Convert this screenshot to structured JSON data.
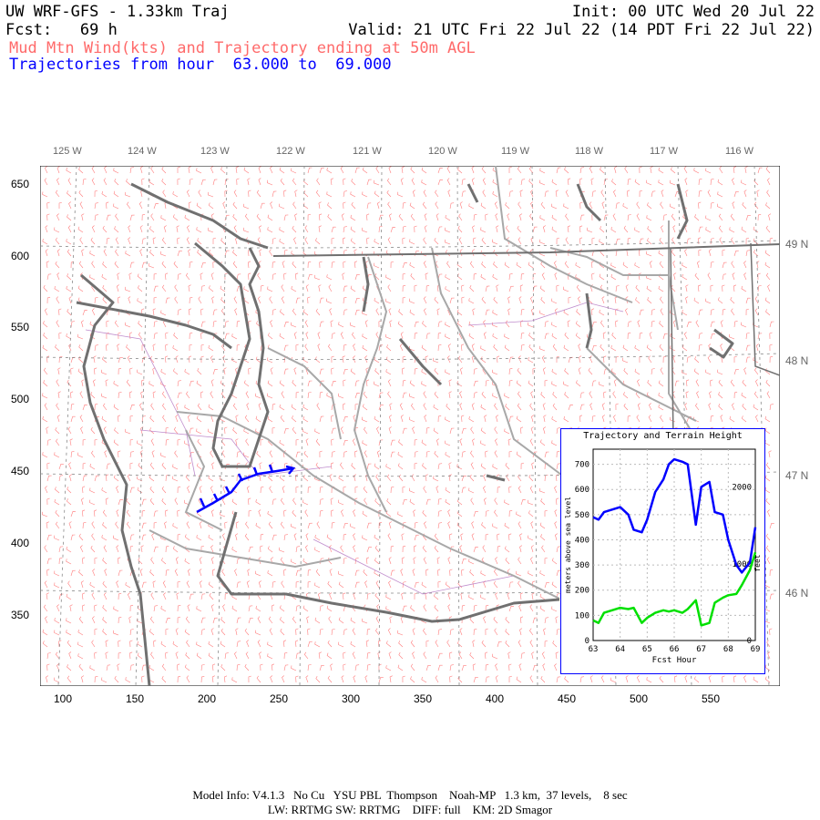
{
  "header": {
    "title": "UW WRF-GFS - 1.33km Traj",
    "init": "Init: 00 UTC Wed 20 Jul 22",
    "fcst": "Fcst:   69 h",
    "valid": "Valid: 21 UTC Fri 22 Jul 22 (14 PDT Fri 22 Jul 22)",
    "subtitle_red": "Mud Mtn Wind(kts) and Trajectory ending at 50m AGL",
    "subtitle_blue": "Trajectories from hour  63.000 to  69.000"
  },
  "map": {
    "lon_labels": [
      "125 W",
      "124 W",
      "123 W",
      "122 W",
      "121 W",
      "120 W",
      "119 W",
      "118 W",
      "117 W",
      "116 W"
    ],
    "lat_labels": [
      "49 N",
      "48 N",
      "47 N",
      "46 N"
    ],
    "y_ticks": [
      "650",
      "600",
      "550",
      "500",
      "450",
      "400",
      "350"
    ],
    "x_ticks": [
      "100",
      "150",
      "200",
      "250",
      "300",
      "350",
      "400",
      "450",
      "500",
      "550"
    ],
    "colors": {
      "coast": "#707070",
      "border": "#a8a8a8",
      "wind": "#ff5050",
      "trajectory": "#0000ff",
      "county": "#b070c0"
    }
  },
  "inset": {
    "title": "Trajectory and Terrain Height",
    "ylabel_left": "meters above sea level",
    "ylabel_right": "feet",
    "xlabel": "Fcst Hour",
    "y_ticks": [
      "700",
      "600",
      "500",
      "400",
      "300",
      "200",
      "100",
      "0"
    ],
    "y_ticks_right": [
      "2000",
      "1000",
      "0"
    ],
    "x_ticks": [
      "63",
      "64",
      "65",
      "66",
      "67",
      "68",
      "69"
    ],
    "colors": {
      "trajectory": "#0000ff",
      "terrain": "#00e000"
    }
  },
  "chart_data": {
    "type": "line",
    "title": "Trajectory and Terrain Height",
    "xlabel": "Fcst Hour",
    "ylabel": "meters above sea level",
    "xlim": [
      63,
      69
    ],
    "ylim": [
      0,
      760
    ],
    "x": [
      63.0,
      63.2,
      63.4,
      63.7,
      64.0,
      64.3,
      64.5,
      64.8,
      65.0,
      65.3,
      65.6,
      65.8,
      66.0,
      66.3,
      66.5,
      66.8,
      67.0,
      67.3,
      67.5,
      67.8,
      68.0,
      68.3,
      68.5,
      68.8,
      69.0
    ],
    "series": [
      {
        "name": "",
        "color": "#0000ff",
        "values": [
          490,
          480,
          510,
          520,
          530,
          500,
          440,
          430,
          480,
          590,
          640,
          700,
          720,
          710,
          700,
          460,
          610,
          630,
          510,
          500,
          400,
          300,
          270,
          310,
          450
        ]
      },
      {
        "name": "",
        "color": "#00e000",
        "values": [
          80,
          70,
          110,
          120,
          130,
          125,
          130,
          70,
          90,
          110,
          120,
          115,
          120,
          110,
          125,
          160,
          60,
          70,
          150,
          170,
          180,
          185,
          220,
          280,
          350
        ]
      }
    ]
  },
  "footer": {
    "line1": "Model Info: V4.1.3   No Cu   YSU PBL  Thompson    Noah-MP   1.3 km,  37 levels,    8 sec",
    "line2": "LW: RRTMG SW: RRTMG    DIFF: full    KM: 2D Smagor"
  }
}
